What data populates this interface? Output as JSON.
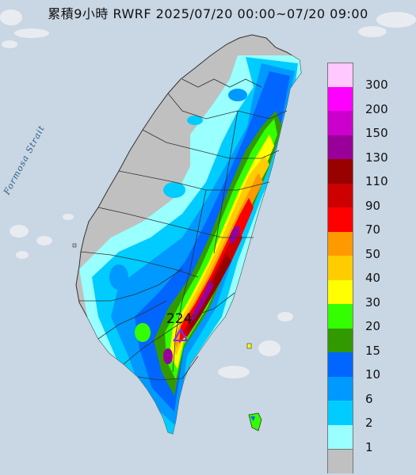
{
  "title": "累積9小時 RWRF 2025/07/20 00:00~07/20 09:00",
  "map": {
    "sea_label": "Formosa Strait",
    "peak": {
      "value": "224",
      "marker": "triangle-marker-icon"
    },
    "colors": {
      "sea": "#c9d6e3",
      "land_no_rain": "#c0c0c0",
      "border": "#333333"
    }
  },
  "legend": {
    "items": [
      {
        "label": "300",
        "color": "#ffc8ff"
      },
      {
        "label": "200",
        "color": "#ff00ff"
      },
      {
        "label": "150",
        "color": "#cc00cc"
      },
      {
        "label": "130",
        "color": "#990099"
      },
      {
        "label": "110",
        "color": "#990000"
      },
      {
        "label": "90",
        "color": "#cc0000"
      },
      {
        "label": "70",
        "color": "#ff0000"
      },
      {
        "label": "50",
        "color": "#ff9900"
      },
      {
        "label": "40",
        "color": "#ffcc00"
      },
      {
        "label": "30",
        "color": "#ffff00"
      },
      {
        "label": "20",
        "color": "#33ff00"
      },
      {
        "label": "15",
        "color": "#339900"
      },
      {
        "label": "10",
        "color": "#0066ff"
      },
      {
        "label": "6",
        "color": "#0099ff"
      },
      {
        "label": "2",
        "color": "#00ccff"
      },
      {
        "label": "1",
        "color": "#99ffff"
      },
      {
        "label": "",
        "color": "#c0c0c0"
      }
    ]
  }
}
